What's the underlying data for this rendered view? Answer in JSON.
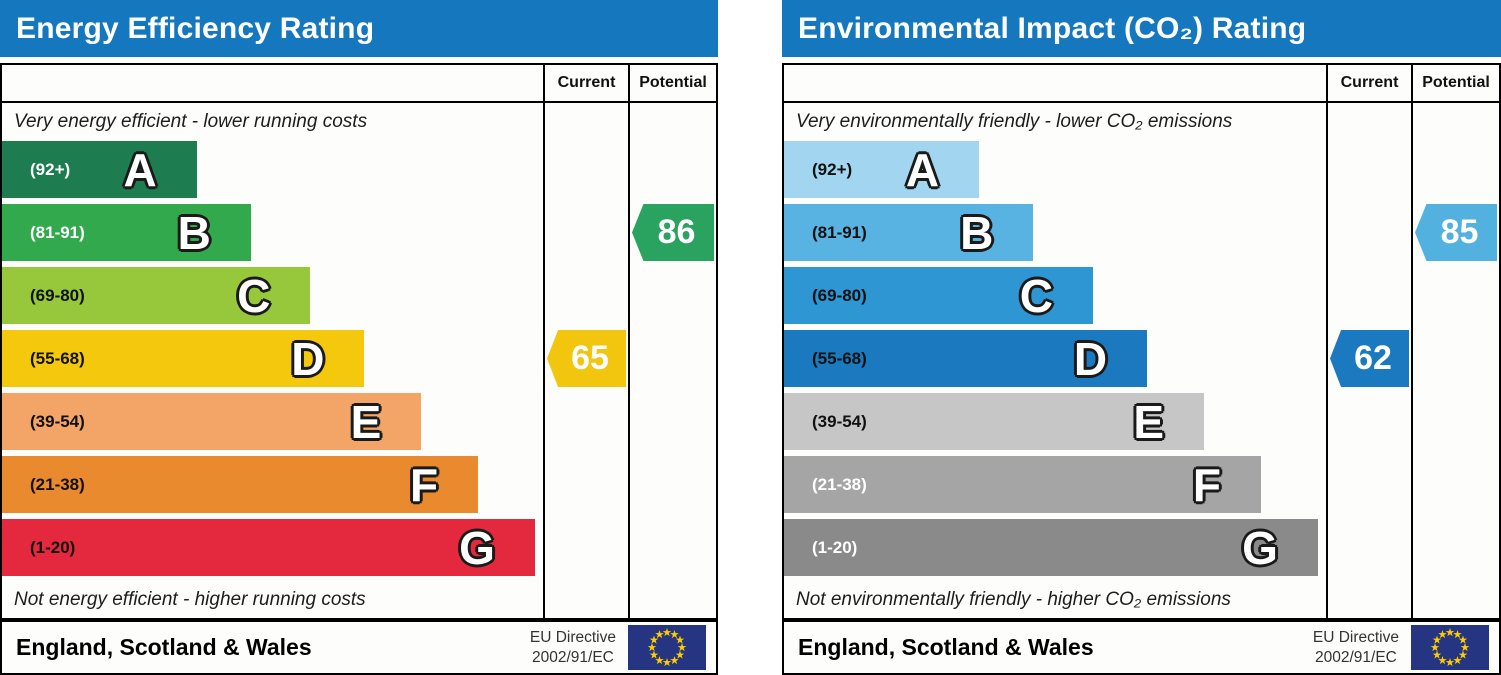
{
  "charts": [
    {
      "title": "Energy Efficiency Rating",
      "columns": {
        "current": "Current",
        "potential": "Potential"
      },
      "top_note": "Very energy efficient - lower running costs",
      "bottom_note": "Not energy efficient - higher running costs",
      "bands": [
        {
          "letter": "A",
          "range": "(92+)",
          "color": "#1e7c51",
          "label_color": "#ffffff",
          "width_pct": 36
        },
        {
          "letter": "B",
          "range": "(81-91)",
          "color": "#33a94e",
          "label_color": "#ffffff",
          "width_pct": 46
        },
        {
          "letter": "C",
          "range": "(69-80)",
          "color": "#97c83c",
          "label_color": "#111111",
          "width_pct": 57
        },
        {
          "letter": "D",
          "range": "(55-68)",
          "color": "#f4c80c",
          "label_color": "#111111",
          "width_pct": 67
        },
        {
          "letter": "E",
          "range": "(39-54)",
          "color": "#f2a567",
          "label_color": "#111111",
          "width_pct": 77.5
        },
        {
          "letter": "F",
          "range": "(21-38)",
          "color": "#ea8a2e",
          "label_color": "#111111",
          "width_pct": 88
        },
        {
          "letter": "G",
          "range": "(1-20)",
          "color": "#e4283d",
          "label_color": "#111111",
          "width_pct": 98.5
        }
      ],
      "current": {
        "value": "65",
        "band": "D",
        "band_index": 3,
        "color": "#f2c50f"
      },
      "potential": {
        "value": "86",
        "band": "B",
        "band_index": 1,
        "color": "#29a35f"
      },
      "footer": {
        "region": "England, Scotland & Wales",
        "directive_line1": "EU Directive",
        "directive_line2": "2002/91/EC"
      }
    },
    {
      "title": "Environmental Impact (CO₂) Rating",
      "columns": {
        "current": "Current",
        "potential": "Potential"
      },
      "top_note": "Very environmentally friendly - lower CO₂ emissions",
      "bottom_note": "Not environmentally friendly - higher CO₂ emissions",
      "bands": [
        {
          "letter": "A",
          "range": "(92+)",
          "color": "#a2d5ef",
          "label_color": "#111111",
          "width_pct": 36
        },
        {
          "letter": "B",
          "range": "(81-91)",
          "color": "#58b2e2",
          "label_color": "#111111",
          "width_pct": 46
        },
        {
          "letter": "C",
          "range": "(69-80)",
          "color": "#2e96d2",
          "label_color": "#111111",
          "width_pct": 57
        },
        {
          "letter": "D",
          "range": "(55-68)",
          "color": "#1b79bf",
          "label_color": "#111111",
          "width_pct": 67
        },
        {
          "letter": "E",
          "range": "(39-54)",
          "color": "#c6c6c6",
          "label_color": "#111111",
          "width_pct": 77.5
        },
        {
          "letter": "F",
          "range": "(21-38)",
          "color": "#a5a5a5",
          "label_color": "#ffffff",
          "width_pct": 88
        },
        {
          "letter": "G",
          "range": "(1-20)",
          "color": "#8a8a8a",
          "label_color": "#ffffff",
          "width_pct": 98.5
        }
      ],
      "current": {
        "value": "62",
        "band": "D",
        "band_index": 3,
        "color": "#1b79bf"
      },
      "potential": {
        "value": "85",
        "band": "B",
        "band_index": 1,
        "color": "#52b1de"
      },
      "footer": {
        "region": "England, Scotland & Wales",
        "directive_line1": "EU Directive",
        "directive_line2": "2002/91/EC"
      }
    }
  ],
  "chart_data": [
    {
      "type": "bar",
      "title": "Energy Efficiency Rating",
      "orientation": "horizontal",
      "categories": [
        "A (92+)",
        "B (81-91)",
        "C (69-80)",
        "D (55-68)",
        "E (39-54)",
        "F (21-38)",
        "G (1-20)"
      ],
      "band_colors": [
        "#1e7c51",
        "#33a94e",
        "#97c83c",
        "#f4c80c",
        "#f2a567",
        "#ea8a2e",
        "#e4283d"
      ],
      "current": {
        "value": 65,
        "band": "D"
      },
      "potential": {
        "value": 86,
        "band": "B"
      },
      "score_range": [
        1,
        100
      ],
      "annotations": [
        "Very energy efficient - lower running costs",
        "Not energy efficient - higher running costs",
        "England, Scotland & Wales",
        "EU Directive 2002/91/EC"
      ]
    },
    {
      "type": "bar",
      "title": "Environmental Impact (CO₂) Rating",
      "orientation": "horizontal",
      "categories": [
        "A (92+)",
        "B (81-91)",
        "C (69-80)",
        "D (55-68)",
        "E (39-54)",
        "F (21-38)",
        "G (1-20)"
      ],
      "band_colors": [
        "#a2d5ef",
        "#58b2e2",
        "#2e96d2",
        "#1b79bf",
        "#c6c6c6",
        "#a5a5a5",
        "#8a8a8a"
      ],
      "current": {
        "value": 62,
        "band": "D"
      },
      "potential": {
        "value": 85,
        "band": "B"
      },
      "score_range": [
        1,
        100
      ],
      "annotations": [
        "Very environmentally friendly - lower CO₂ emissions",
        "Not environmentally friendly - higher CO₂ emissions",
        "England, Scotland & Wales",
        "EU Directive 2002/91/EC"
      ]
    }
  ]
}
